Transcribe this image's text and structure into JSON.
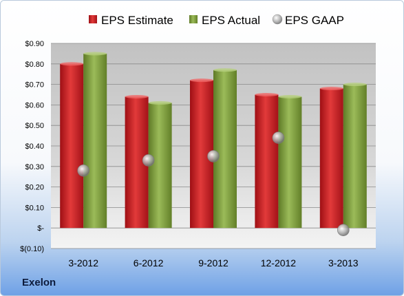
{
  "company": "Exelon",
  "chart_data": {
    "type": "bar",
    "categories": [
      "3-2012",
      "6-2012",
      "9-2012",
      "12-2012",
      "3-2013"
    ],
    "series": [
      {
        "name": "EPS Estimate",
        "kind": "bar",
        "color": "#c8161d",
        "values": [
          0.8,
          0.64,
          0.72,
          0.65,
          0.68
        ]
      },
      {
        "name": "EPS Actual",
        "kind": "bar",
        "color": "#7a9a3a",
        "values": [
          0.85,
          0.61,
          0.77,
          0.64,
          0.7
        ]
      },
      {
        "name": "EPS GAAP",
        "kind": "marker",
        "color": "#a0a0a0",
        "values": [
          0.28,
          0.33,
          0.35,
          0.44,
          -0.01
        ]
      }
    ],
    "yticks": [
      {
        "value": 0.9,
        "label": "$0.90"
      },
      {
        "value": 0.8,
        "label": "$0.80"
      },
      {
        "value": 0.7,
        "label": "$0.70"
      },
      {
        "value": 0.6,
        "label": "$0.60"
      },
      {
        "value": 0.5,
        "label": "$0.50"
      },
      {
        "value": 0.4,
        "label": "$0.40"
      },
      {
        "value": 0.3,
        "label": "$0.30"
      },
      {
        "value": 0.2,
        "label": "$0.20"
      },
      {
        "value": 0.1,
        "label": "$0.10"
      },
      {
        "value": 0.0,
        "label": "$-"
      },
      {
        "value": -0.1,
        "label": "$(0.10)"
      }
    ],
    "ylim": [
      -0.1,
      0.9
    ],
    "grid": true,
    "legend_position": "top"
  }
}
